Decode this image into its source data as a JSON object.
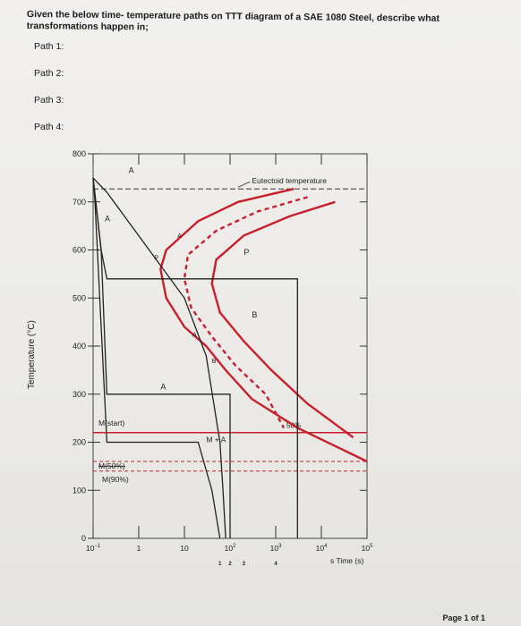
{
  "question": "Given the below time- temperature paths on TTT diagram of a SAE 1080 Steel, describe what transformations happen in;",
  "paths": [
    "Path 1:",
    "Path 2:",
    "Path 3:",
    "Path 4:"
  ],
  "page": "Page 1 of 1",
  "chart_data": {
    "type": "line",
    "title": "",
    "ylabel": "Temperature (°C)",
    "xlabel": "Time (s)",
    "xscale": "log",
    "xlim": [
      0.1,
      100000
    ],
    "ylim": [
      0,
      800
    ],
    "y_ticks": [
      "800",
      "700",
      "600",
      "500",
      "400",
      "300",
      "200",
      "100",
      "0"
    ],
    "x_ticks": [
      {
        "b": "10",
        "e": "−1",
        "v": 0.1
      },
      {
        "b": "1",
        "e": "",
        "v": 1
      },
      {
        "b": "10",
        "e": "",
        "v": 10
      },
      {
        "b": "10",
        "e": "2",
        "v": 100
      },
      {
        "b": "10",
        "e": "3",
        "v": 1000
      },
      {
        "b": "10",
        "e": "4",
        "v": 10000
      },
      {
        "b": "10",
        "e": "5",
        "v": 100000
      }
    ],
    "x_unit_prefix": "s",
    "path_numbers": [
      {
        "label": "1",
        "x": 60
      },
      {
        "label": "2",
        "x": 100
      },
      {
        "label": "3",
        "x": 200
      },
      {
        "label": "4",
        "x": 1000
      }
    ],
    "annotations": {
      "eutectoid": "Eutectoid temperature",
      "m_start": "M(start)",
      "m50": "M(50%)",
      "m90": "M(90%)",
      "pct50": "50%",
      "region_m_a": "M + A",
      "A": "A",
      "P": "P",
      "B": "B"
    },
    "eutectoid_temperature": 727,
    "m_start": 220,
    "m50": 160,
    "m90": 140,
    "transformation_curves": [
      {
        "name": "start",
        "color": "#c8202a",
        "points": [
          [
            2500,
            727
          ],
          [
            150,
            700
          ],
          [
            20,
            660
          ],
          [
            4,
            600
          ],
          [
            3,
            560
          ],
          [
            4,
            500
          ],
          [
            10,
            440
          ],
          [
            30,
            400
          ],
          [
            80,
            350
          ],
          [
            300,
            290
          ],
          [
            3000,
            230
          ],
          [
            100000,
            160
          ]
        ]
      },
      {
        "name": "50%",
        "color": "#c8202a",
        "dashed": true,
        "points": [
          [
            5000,
            710
          ],
          [
            400,
            680
          ],
          [
            50,
            640
          ],
          [
            12,
            590
          ],
          [
            10,
            540
          ],
          [
            14,
            480
          ],
          [
            40,
            420
          ],
          [
            130,
            360
          ],
          [
            600,
            300
          ],
          [
            1500,
            230
          ]
        ]
      },
      {
        "name": "finish",
        "color": "#c8202a",
        "points": [
          [
            20000,
            700
          ],
          [
            2000,
            670
          ],
          [
            200,
            630
          ],
          [
            50,
            580
          ],
          [
            40,
            530
          ],
          [
            60,
            470
          ],
          [
            200,
            410
          ],
          [
            800,
            350
          ],
          [
            5000,
            280
          ],
          [
            50000,
            210
          ]
        ]
      }
    ],
    "cooling_paths": [
      {
        "label": "1",
        "color": "#222222",
        "points": [
          [
            0.1,
            750
          ],
          [
            0.2,
            720
          ],
          [
            10,
            500
          ],
          [
            30,
            380
          ],
          [
            60,
            200
          ],
          [
            70,
            100
          ],
          [
            80,
            0
          ]
        ]
      },
      {
        "label": "2",
        "color": "#222222",
        "points": [
          [
            0.1,
            750
          ],
          [
            0.15,
            600
          ],
          [
            0.2,
            300
          ],
          [
            100,
            300
          ],
          [
            100,
            0
          ]
        ]
      },
      {
        "label": "3",
        "color": "#222222",
        "points": [
          [
            0.1,
            750
          ],
          [
            0.15,
            600
          ],
          [
            0.2,
            540
          ],
          [
            3000,
            540
          ],
          [
            3000,
            0
          ]
        ]
      },
      {
        "label": "4",
        "color": "#222222",
        "points": [
          [
            0.1,
            750
          ],
          [
            0.11,
            700
          ],
          [
            0.2,
            200
          ],
          [
            20,
            200
          ],
          [
            40,
            100
          ],
          [
            60,
            0
          ]
        ]
      }
    ]
  }
}
